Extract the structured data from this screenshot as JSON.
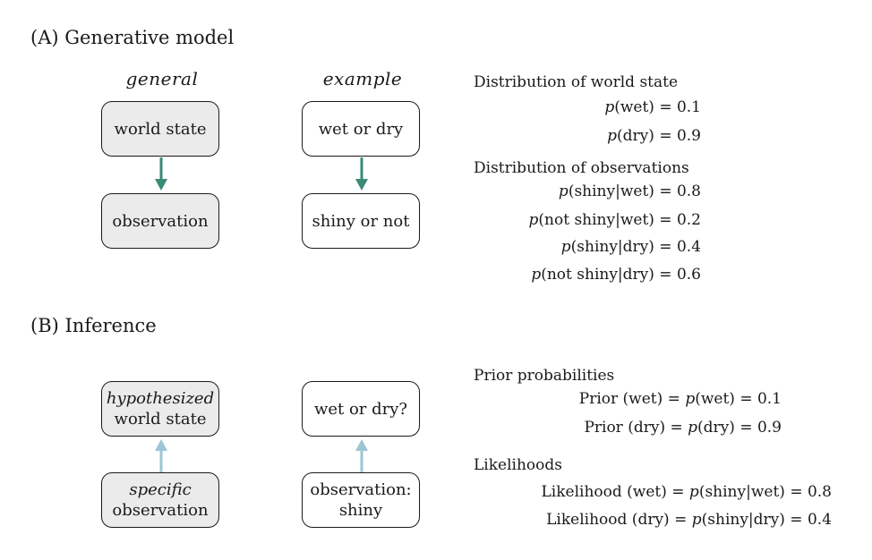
{
  "sectionA": {
    "title": "(A)  Generative model",
    "col_general": "general",
    "col_example": "example",
    "general_top": "world state",
    "general_bottom": "observation",
    "example_top": "wet or dry",
    "example_bottom": "shiny or not",
    "dist_world_heading": "Distribution of world state",
    "dist_obs_heading": "Distribution of observations",
    "eq_p_wet": "(wet) = 0.1",
    "eq_p_dry": "(dry) = 0.9",
    "eq_shiny_wet": "(shiny|wet) = 0.8",
    "eq_notshiny_wet": "(not shiny|wet) = 0.2",
    "eq_shiny_dry": "(shiny|dry) = 0.4",
    "eq_notshiny_dry": "(not shiny|dry) = 0.6",
    "p_symbol": "p",
    "arrow_color": "#3a8a78"
  },
  "sectionB": {
    "title": "(B)  Inference",
    "general_top_italic": "hypothesized",
    "general_top_rest": "world state",
    "general_bottom_italic": "specific",
    "general_bottom_rest": "observation",
    "example_top": "wet or dry?",
    "example_bottom_line1": "observation:",
    "example_bottom_line2": "shiny",
    "prior_heading": "Prior probabilities",
    "likelihood_heading": "Likelihoods",
    "prior_wet_lhs": "Prior (wet) = ",
    "prior_wet_rhs": "(wet) = 0.1",
    "prior_dry_lhs": "Prior (dry) = ",
    "prior_dry_rhs": "(dry) = 0.9",
    "lik_wet_lhs": "Likelihood (wet) = ",
    "lik_wet_rhs": "(shiny|wet) = 0.8",
    "lik_dry_lhs": "Likelihood (dry) = ",
    "lik_dry_rhs": "(shiny|dry) = 0.4",
    "arrow_color": "#9cc6d3"
  }
}
